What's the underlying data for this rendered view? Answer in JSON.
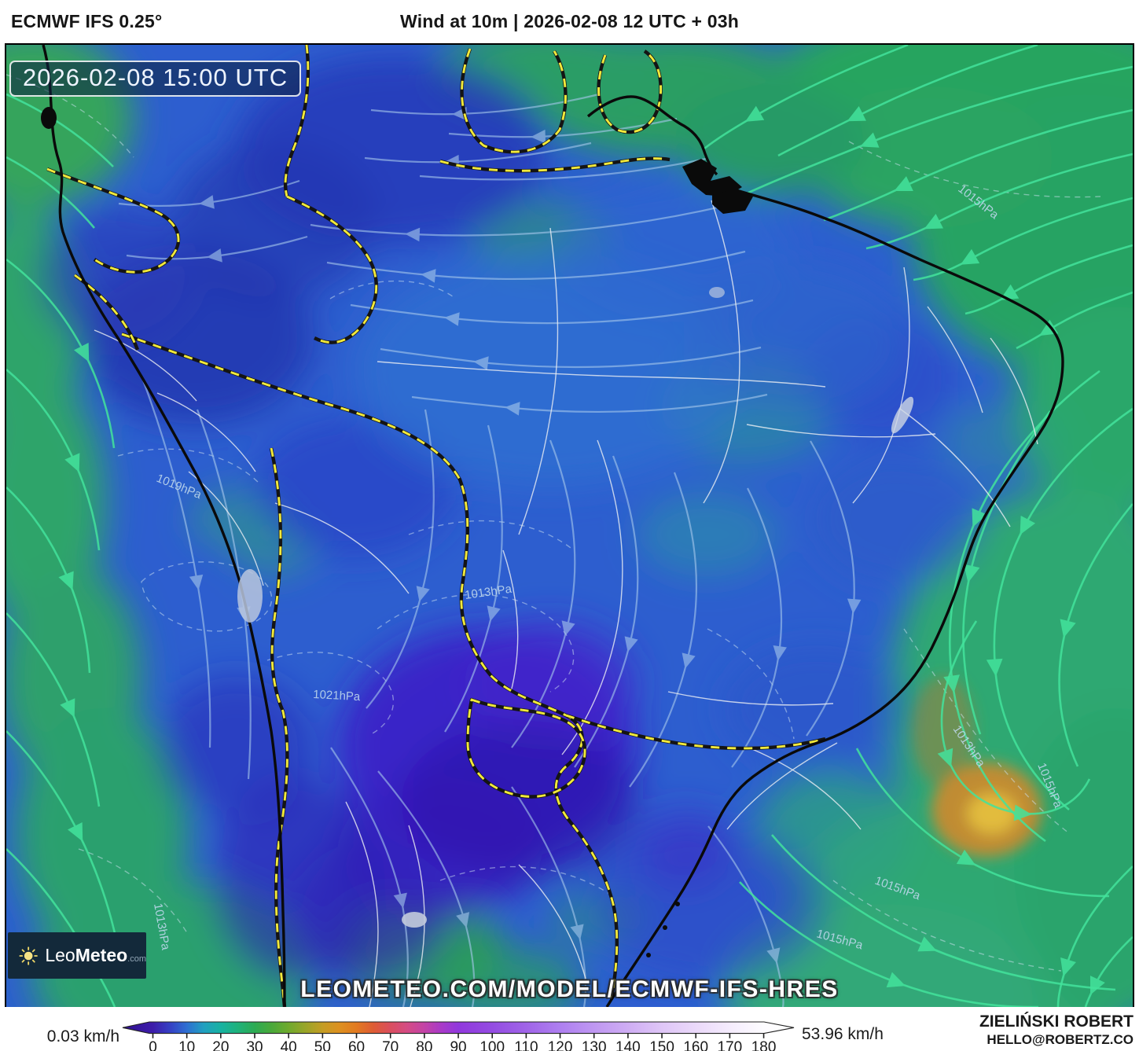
{
  "header": {
    "model_label": "ECMWF IFS 0.25°",
    "title": "Wind at 10m | 2026-02-08 12 UTC + 03h"
  },
  "map": {
    "timestamp": "2026-02-08 15:00 UTC",
    "watermark": "LEOMETEO.COM/MODEL/ECMWF-IFS-HRES",
    "logo": {
      "prefix": "Leo",
      "suffix": "Meteo",
      "tld": ".com"
    },
    "isobar_labels": [
      "1013hPa",
      "1015hPa",
      "1015hPa",
      "1013hPa",
      "1021hPa",
      "1019hPa",
      "1013hPa",
      "1015hPa",
      "1015hPa"
    ]
  },
  "legend": {
    "min_label": "0.03 km/h",
    "max_label": "53.96 km/h",
    "unit": "km/h",
    "ticks": [
      0,
      10,
      20,
      30,
      40,
      50,
      60,
      70,
      80,
      90,
      100,
      110,
      120,
      130,
      140,
      150,
      160,
      170,
      180
    ],
    "below_min_color": "#2f1090",
    "above_max_color": "#ffffff",
    "colorscale": [
      {
        "value": 0,
        "color": "#3d1caa"
      },
      {
        "value": 5,
        "color": "#3640c4"
      },
      {
        "value": 10,
        "color": "#2e6fd2"
      },
      {
        "value": 15,
        "color": "#21a0c0"
      },
      {
        "value": 20,
        "color": "#17b2a2"
      },
      {
        "value": 25,
        "color": "#1fb27b"
      },
      {
        "value": 30,
        "color": "#2cab53"
      },
      {
        "value": 35,
        "color": "#4aa93a"
      },
      {
        "value": 40,
        "color": "#6faa2d"
      },
      {
        "value": 45,
        "color": "#9aa528"
      },
      {
        "value": 50,
        "color": "#c49d24"
      },
      {
        "value": 55,
        "color": "#dd9020"
      },
      {
        "value": 60,
        "color": "#e27a20"
      },
      {
        "value": 65,
        "color": "#de5c35"
      },
      {
        "value": 70,
        "color": "#da4e5e"
      },
      {
        "value": 75,
        "color": "#d44b85"
      },
      {
        "value": 80,
        "color": "#c343a6"
      },
      {
        "value": 85,
        "color": "#a93ac8"
      },
      {
        "value": 90,
        "color": "#9138dd"
      },
      {
        "value": 100,
        "color": "#944ce2"
      },
      {
        "value": 110,
        "color": "#a064e8"
      },
      {
        "value": 120,
        "color": "#ae7ff0"
      },
      {
        "value": 130,
        "color": "#bf97f2"
      },
      {
        "value": 140,
        "color": "#cfadf4"
      },
      {
        "value": 150,
        "color": "#dfc6f7"
      },
      {
        "value": 160,
        "color": "#ebd9fa"
      },
      {
        "value": 170,
        "color": "#f5ecfd"
      },
      {
        "value": 180,
        "color": "#fdfcff"
      }
    ]
  },
  "credit": {
    "name": "ZIELIŃSKI ROBERT",
    "email": "HELLO@ROBERTZ.CO"
  }
}
